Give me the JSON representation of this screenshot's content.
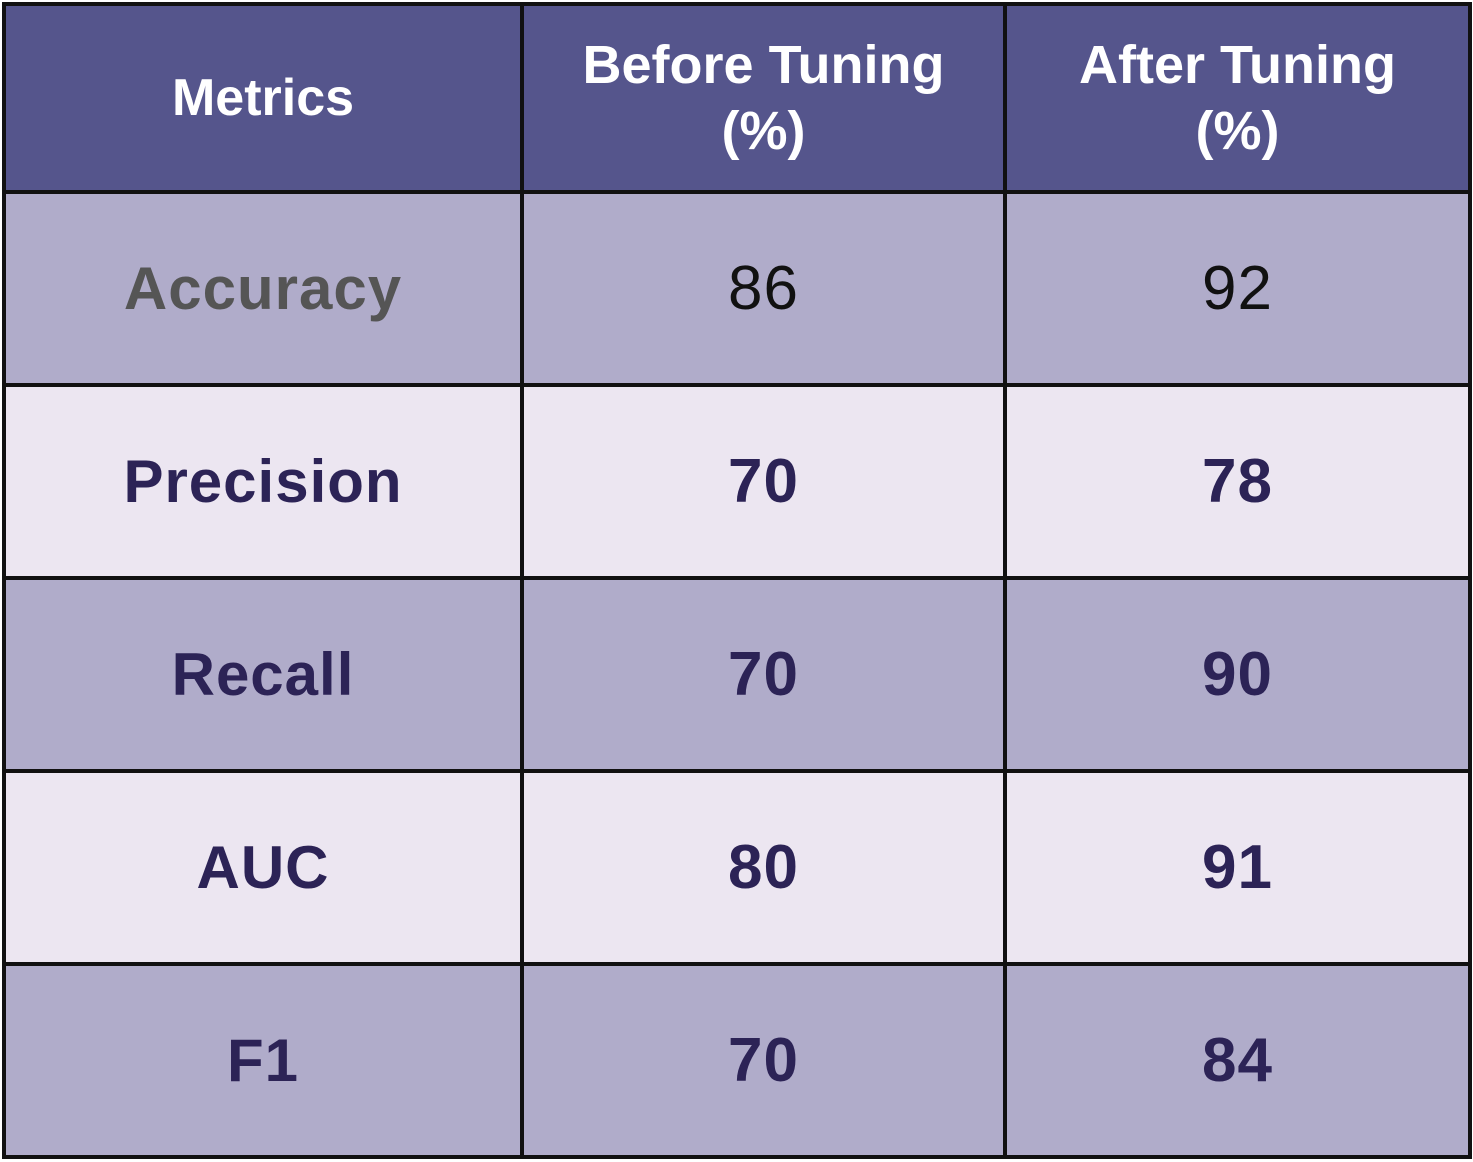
{
  "table": {
    "headers": {
      "metric": "Metrics",
      "before": [
        "Before Tuning",
        "(%)"
      ],
      "after": [
        "After Tuning",
        "(%)"
      ]
    },
    "rows": [
      {
        "metric": "Accuracy",
        "before": "86",
        "after": "92"
      },
      {
        "metric": "Precision",
        "before": "70",
        "after": "78"
      },
      {
        "metric": "Recall",
        "before": "70",
        "after": "90"
      },
      {
        "metric": "AUC",
        "before": "80",
        "after": "91"
      },
      {
        "metric": "F1",
        "before": "70",
        "after": "84"
      }
    ]
  },
  "colors": {
    "header_bg": "#55558c",
    "row_dark_bg": "#b0acca",
    "row_light_bg": "#ece6f1",
    "text_dark": "#2c2356",
    "text_muted": "#555555",
    "border": "#111111"
  },
  "chart_data": {
    "type": "table",
    "columns": [
      "Metrics",
      "Before Tuning (%)",
      "After Tuning (%)"
    ],
    "rows": [
      [
        "Accuracy",
        86,
        92
      ],
      [
        "Precision",
        70,
        78
      ],
      [
        "Recall",
        70,
        90
      ],
      [
        "AUC",
        80,
        91
      ],
      [
        "F1",
        70,
        84
      ]
    ]
  }
}
